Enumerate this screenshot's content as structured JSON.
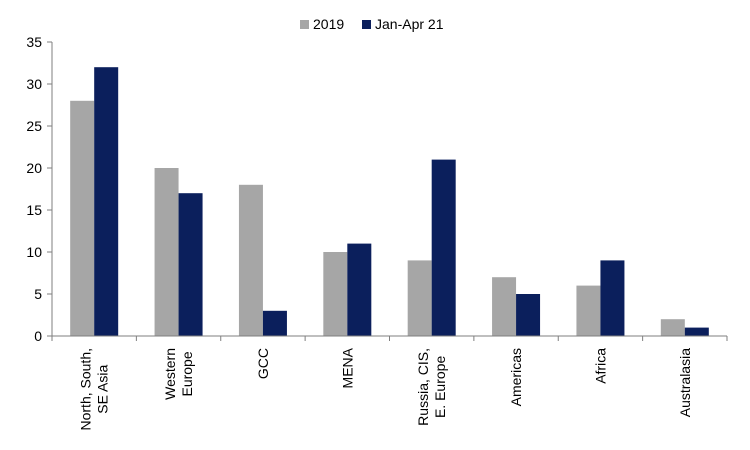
{
  "chart_data": {
    "type": "bar",
    "title": "",
    "xlabel": "",
    "ylabel": "",
    "categories": [
      [
        "North, South,",
        "SE Asia"
      ],
      [
        "Western",
        "Europe"
      ],
      [
        "GCC"
      ],
      [
        "MENA"
      ],
      [
        "Russia, CIS,",
        "E. Europe"
      ],
      [
        "Americas"
      ],
      [
        "Africa"
      ],
      [
        "Australasia"
      ]
    ],
    "series": [
      {
        "name": "2019",
        "color": "#a6a6a6",
        "values": [
          28,
          20,
          18,
          10,
          9,
          7,
          6,
          2
        ]
      },
      {
        "name": "Jan-Apr 21",
        "color": "#0b1f5c",
        "values": [
          32,
          17,
          3,
          11,
          21,
          5,
          9,
          1
        ]
      }
    ],
    "ylim": [
      0,
      35
    ],
    "yticks": [
      0,
      5,
      10,
      15,
      20,
      25,
      30,
      35
    ],
    "grid": false,
    "legend_position": "top-center"
  }
}
